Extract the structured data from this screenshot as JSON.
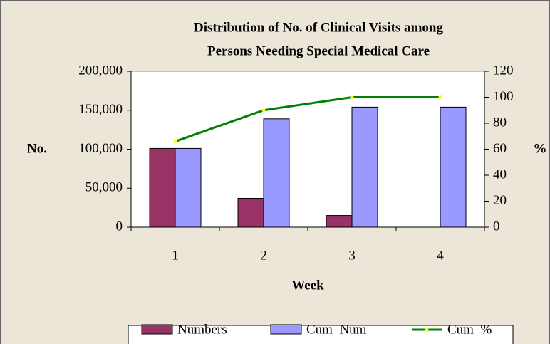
{
  "chart_data": {
    "type": "bar",
    "title": [
      "Distribution of No. of Clinical Visits among",
      "Persons Needing Special Medical Care"
    ],
    "categories": [
      "1",
      "2",
      "3",
      "4"
    ],
    "xlabel": "Week",
    "ylabel": "No.",
    "y2label": "%",
    "series": [
      {
        "name": "Numbers",
        "color": "#993366",
        "type": "bar",
        "values": [
          101000,
          37000,
          15000,
          0
        ]
      },
      {
        "name": "Cum_Num",
        "color": "#9999ff",
        "type": "bar",
        "values": [
          101000,
          139000,
          154000,
          154000
        ]
      },
      {
        "name": "Cum_%",
        "color": "#008000",
        "marker_color": "#ffff00",
        "type": "line",
        "axis": "y2",
        "values": [
          66,
          90,
          100,
          100
        ]
      }
    ],
    "ylim": [
      0,
      200000
    ],
    "yticks": [
      0,
      {
        "value": 50000,
        "label": "50,000"
      },
      {
        "value": 100000,
        "label": "100,000"
      },
      {
        "value": 150000,
        "label": "150,000"
      },
      {
        "value": 200000,
        "label": "200,000"
      }
    ],
    "y2lim": [
      0,
      120
    ],
    "y2ticks": [
      0,
      20,
      40,
      60,
      80,
      100,
      120
    ],
    "legend": "bottom"
  }
}
